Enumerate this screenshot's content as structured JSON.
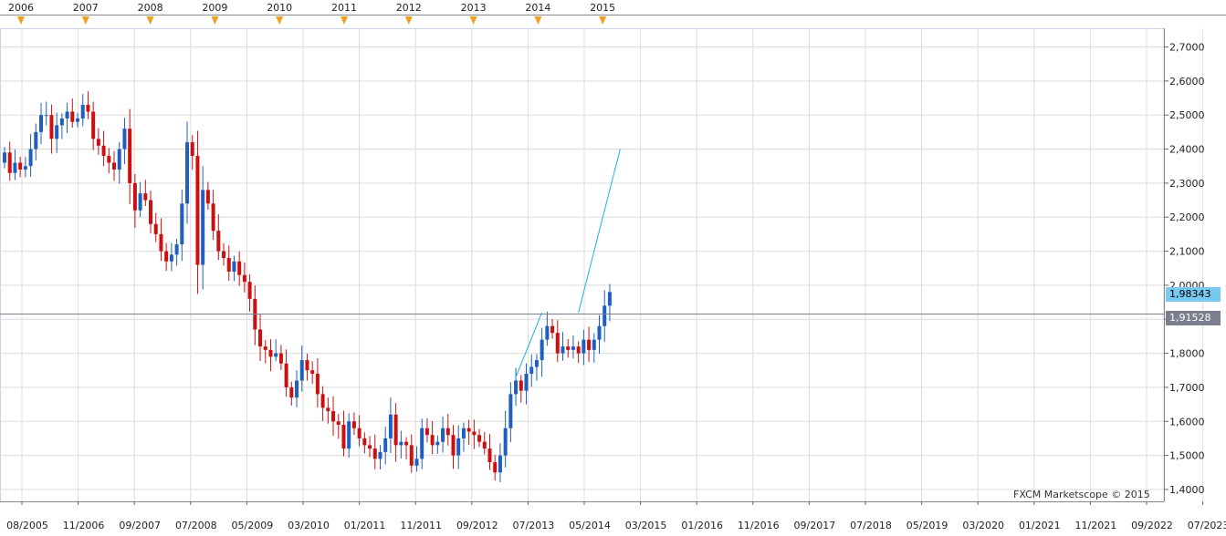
{
  "watermark": "FXCM Marketscope © 2015",
  "price_badges": {
    "current": "1,98343",
    "horizontal_line": "1,91528"
  },
  "colors": {
    "up_candle": "#1f5fbf",
    "down_candle": "#cc1010",
    "trend_line": "#18b4e0",
    "horizontal_line": "#7a7e8e",
    "grid": "#dcdcdc",
    "year_marker": "#f0a020"
  },
  "chart_data": {
    "type": "candlestick",
    "timeframe": "monthly",
    "y_ticks": [
      "1,4000",
      "1,5000",
      "1,6000",
      "1,7000",
      "1,8000",
      "1,9000",
      "2,0000",
      "2,1000",
      "2,2000",
      "2,3000",
      "2,4000",
      "2,5000",
      "2,6000",
      "2,7000"
    ],
    "y_tick_values": [
      1.4,
      1.5,
      1.6,
      1.7,
      1.8,
      1.9,
      2.0,
      2.1,
      2.2,
      2.3,
      2.4,
      2.5,
      2.6,
      2.7
    ],
    "ylim": [
      1.365,
      2.755
    ],
    "x_tick_labels": [
      "08/2005",
      "11/2006",
      "09/2007",
      "07/2008",
      "05/2009",
      "03/2010",
      "01/2011",
      "11/2011",
      "09/2012",
      "07/2013",
      "05/2014",
      "03/2015",
      "01/2016",
      "11/2016",
      "09/2017",
      "07/2018",
      "05/2019",
      "03/2020",
      "01/2021",
      "11/2021",
      "09/2022",
      "07/2023"
    ],
    "year_markers": [
      "2006",
      "2007",
      "2008",
      "2009",
      "2010",
      "2011",
      "2012",
      "2013",
      "2014",
      "2015"
    ],
    "closes": [
      2.39,
      2.33,
      2.36,
      2.34,
      2.35,
      2.4,
      2.45,
      2.5,
      2.5,
      2.43,
      2.47,
      2.49,
      2.51,
      2.48,
      2.49,
      2.53,
      2.51,
      2.43,
      2.41,
      2.38,
      2.36,
      2.34,
      2.4,
      2.46,
      2.3,
      2.22,
      2.27,
      2.25,
      2.18,
      2.15,
      2.1,
      2.07,
      2.09,
      2.12,
      2.24,
      2.42,
      2.38,
      2.06,
      2.28,
      2.24,
      2.16,
      2.1,
      2.08,
      2.04,
      2.07,
      2.03,
      2.01,
      1.96,
      1.87,
      1.82,
      1.81,
      1.79,
      1.8,
      1.77,
      1.7,
      1.67,
      1.72,
      1.78,
      1.75,
      1.74,
      1.68,
      1.64,
      1.63,
      1.6,
      1.59,
      1.52,
      1.6,
      1.58,
      1.55,
      1.53,
      1.52,
      1.49,
      1.51,
      1.55,
      1.62,
      1.53,
      1.54,
      1.53,
      1.47,
      1.49,
      1.58,
      1.56,
      1.53,
      1.54,
      1.58,
      1.56,
      1.5,
      1.55,
      1.58,
      1.57,
      1.56,
      1.54,
      1.52,
      1.48,
      1.45,
      1.5,
      1.58,
      1.68,
      1.72,
      1.69,
      1.74,
      1.76,
      1.78,
      1.84,
      1.88,
      1.86,
      1.8,
      1.82,
      1.81,
      1.82,
      1.8,
      1.84,
      1.81,
      1.84,
      1.88,
      1.94,
      1.98
    ],
    "opens_first": 2.36,
    "trend_lines": [
      {
        "from": {
          "index": 98,
          "value": 1.73
        },
        "to": {
          "index": 103,
          "value": 1.92
        }
      },
      {
        "from": {
          "index": 110,
          "value": 1.92
        },
        "to": {
          "index": 118,
          "value": 2.4
        }
      }
    ],
    "horizontal_line": 1.91528,
    "current_price": 1.98343
  }
}
